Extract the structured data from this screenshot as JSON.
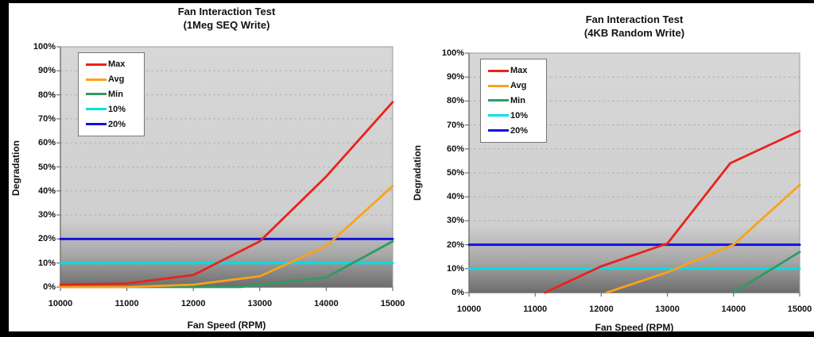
{
  "colors": {
    "page_background": "#ffffff",
    "border_bands": "#000000",
    "plot_fill_top": "#d7d7d7",
    "plot_fill_bottom": "#6d6d6d",
    "gridline": "#b1b1b1",
    "axis": "#707070",
    "plot_border": "#9b9b9b",
    "text": "#111111",
    "series_max": "#e8231c",
    "series_avg": "#faa21b",
    "series_min": "#2f9b64",
    "series_10pct": "#00dfe8",
    "series_20pct": "#1412dd"
  },
  "chart_data": [
    {
      "type": "line",
      "title": "Fan Interaction Test",
      "subtitle": "(1Meg SEQ Write)",
      "xlabel": "Fan Speed (RPM)",
      "ylabel": "Degradation",
      "xlim": [
        10000,
        15000
      ],
      "ylim": [
        0,
        100
      ],
      "x_ticks": [
        10000,
        11000,
        12000,
        13000,
        14000,
        15000
      ],
      "y_tick_labels": [
        "0%",
        "10%",
        "20%",
        "30%",
        "40%",
        "50%",
        "60%",
        "70%",
        "80%",
        "90%",
        "100%"
      ],
      "grid": "horizontal-dashed",
      "legend_position": "top-left-inside",
      "series": [
        {
          "name": "Max",
          "color": "#e8231c",
          "points": [
            [
              10000,
              1
            ],
            [
              11000,
              1.5
            ],
            [
              12000,
              5
            ],
            [
              13000,
              19
            ],
            [
              14000,
              46
            ],
            [
              15000,
              77
            ]
          ]
        },
        {
          "name": "Avg",
          "color": "#faa21b",
          "points": [
            [
              10000,
              0
            ],
            [
              11000,
              0
            ],
            [
              12000,
              1
            ],
            [
              13000,
              4.5
            ],
            [
              14000,
              17
            ],
            [
              15000,
              42
            ]
          ]
        },
        {
          "name": "Min",
          "color": "#2f9b64",
          "points": [
            [
              10000,
              0
            ],
            [
              12700,
              0
            ],
            [
              13000,
              1
            ],
            [
              14000,
              4
            ],
            [
              15000,
              19
            ]
          ]
        },
        {
          "name": "10%",
          "color": "#00dfe8",
          "points": [
            [
              10000,
              10
            ],
            [
              15000,
              10
            ]
          ]
        },
        {
          "name": "20%",
          "color": "#1412dd",
          "points": [
            [
              10000,
              20
            ],
            [
              15000,
              20
            ]
          ]
        }
      ]
    },
    {
      "type": "line",
      "title": "Fan Interaction Test",
      "subtitle": "(4KB Random Write)",
      "xlabel": "Fan Speed (RPM)",
      "ylabel": "Degradation",
      "xlim": [
        10000,
        15000
      ],
      "ylim": [
        0,
        100
      ],
      "x_ticks": [
        10000,
        11000,
        12000,
        13000,
        14000,
        15000
      ],
      "y_tick_labels": [
        "0%",
        "10%",
        "20%",
        "30%",
        "40%",
        "50%",
        "60%",
        "70%",
        "80%",
        "90%",
        "100%"
      ],
      "grid": "horizontal-dashed",
      "legend_position": "top-left-inside",
      "series": [
        {
          "name": "Max",
          "color": "#e8231c",
          "points": [
            [
              11150,
              0
            ],
            [
              12000,
              11
            ],
            [
              13000,
              20.5
            ],
            [
              13950,
              54
            ],
            [
              15000,
              67.5
            ]
          ]
        },
        {
          "name": "Avg",
          "color": "#faa21b",
          "points": [
            [
              12080,
              0
            ],
            [
              13000,
              8.5
            ],
            [
              14000,
              20
            ],
            [
              15000,
              45
            ]
          ]
        },
        {
          "name": "Min",
          "color": "#2f9b64",
          "points": [
            [
              14000,
              0
            ],
            [
              15000,
              17
            ]
          ]
        },
        {
          "name": "10%",
          "color": "#00dfe8",
          "points": [
            [
              10000,
              10
            ],
            [
              15000,
              10
            ]
          ]
        },
        {
          "name": "20%",
          "color": "#1412dd",
          "points": [
            [
              10000,
              20
            ],
            [
              15000,
              20
            ]
          ]
        }
      ]
    }
  ]
}
